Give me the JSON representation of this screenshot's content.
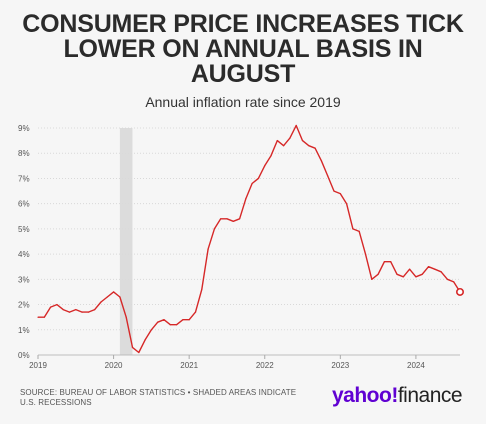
{
  "header": {
    "title_lines": [
      "CONSUMER PRICE INCREASES TICK",
      "LOWER ON ANNUAL BASIS IN",
      "AUGUST"
    ],
    "subtitle": "Annual inflation rate since 2019"
  },
  "footer": {
    "source_lines": [
      "SOURCE: BUREAU OF LABOR STATISTICS • SHADED AREAS INDICATE",
      "U.S. RECESSIONS"
    ]
  },
  "logo": {
    "part1": "yahoo!",
    "part2": "finance"
  },
  "chart_data": {
    "type": "line",
    "title": "CONSUMER PRICE INCREASES TICK LOWER ON ANNUAL BASIS IN AUGUST",
    "subtitle": "Annual inflation rate since 2019",
    "xlabel": "",
    "ylabel": "",
    "ylim": [
      0,
      9
    ],
    "xlim": [
      "2019-01",
      "2024-08"
    ],
    "grid": true,
    "y_ticks": [
      "0%",
      "1%",
      "2%",
      "3%",
      "4%",
      "5%",
      "6%",
      "7%",
      "8%",
      "9%"
    ],
    "x_ticks": [
      "2019",
      "2020",
      "2021",
      "2022",
      "2023",
      "2024"
    ],
    "recession_shading": [
      {
        "start": "2020-02",
        "end": "2020-04"
      }
    ],
    "series_color": "#d62828",
    "grid_color": "#d9d9d9",
    "shade_color": "#dcdcdc",
    "series": [
      {
        "name": "",
        "x": [
          "2019-01",
          "2019-02",
          "2019-03",
          "2019-04",
          "2019-05",
          "2019-06",
          "2019-07",
          "2019-08",
          "2019-09",
          "2019-10",
          "2019-11",
          "2019-12",
          "2020-01",
          "2020-02",
          "2020-03",
          "2020-04",
          "2020-05",
          "2020-06",
          "2020-07",
          "2020-08",
          "2020-09",
          "2020-10",
          "2020-11",
          "2020-12",
          "2021-01",
          "2021-02",
          "2021-03",
          "2021-04",
          "2021-05",
          "2021-06",
          "2021-07",
          "2021-08",
          "2021-09",
          "2021-10",
          "2021-11",
          "2021-12",
          "2022-01",
          "2022-02",
          "2022-03",
          "2022-04",
          "2022-05",
          "2022-06",
          "2022-07",
          "2022-08",
          "2022-09",
          "2022-10",
          "2022-11",
          "2022-12",
          "2023-01",
          "2023-02",
          "2023-03",
          "2023-04",
          "2023-05",
          "2023-06",
          "2023-07",
          "2023-08",
          "2023-09",
          "2023-10",
          "2023-11",
          "2023-12",
          "2024-01",
          "2024-02",
          "2024-03",
          "2024-04",
          "2024-05",
          "2024-06",
          "2024-07",
          "2024-08"
        ],
        "values": [
          1.5,
          1.5,
          1.9,
          2.0,
          1.8,
          1.7,
          1.8,
          1.7,
          1.7,
          1.8,
          2.1,
          2.3,
          2.5,
          2.3,
          1.5,
          0.3,
          0.1,
          0.6,
          1.0,
          1.3,
          1.4,
          1.2,
          1.2,
          1.4,
          1.4,
          1.7,
          2.6,
          4.2,
          5.0,
          5.4,
          5.4,
          5.3,
          5.4,
          6.2,
          6.8,
          7.0,
          7.5,
          7.9,
          8.5,
          8.3,
          8.6,
          9.1,
          8.5,
          8.3,
          8.2,
          7.7,
          7.1,
          6.5,
          6.4,
          6.0,
          5.0,
          4.9,
          4.0,
          3.0,
          3.2,
          3.7,
          3.7,
          3.2,
          3.1,
          3.4,
          3.1,
          3.2,
          3.5,
          3.4,
          3.3,
          3.0,
          2.9,
          2.5
        ]
      }
    ],
    "highlight_last_point": true
  }
}
